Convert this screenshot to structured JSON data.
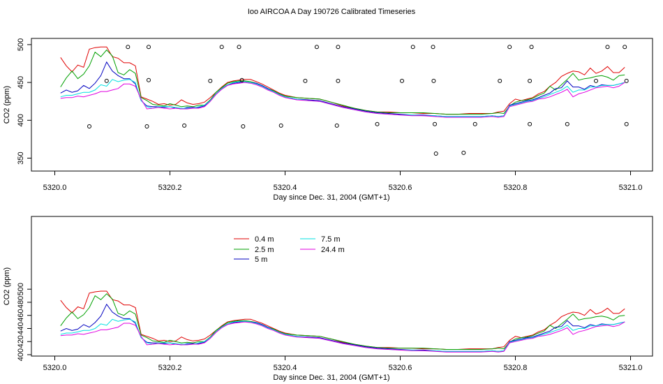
{
  "figure": {
    "title": "Ioo AIRCOA A  Day 190726  Calibrated Timeseries"
  },
  "legend": [
    {
      "label": "0.4 m",
      "color": "#e00000"
    },
    {
      "label": "2.5 m",
      "color": "#00a000"
    },
    {
      "label": "5 m",
      "color": "#0000c0"
    },
    {
      "label": "7.5 m",
      "color": "#00e0e0"
    },
    {
      "label": "24.4 m",
      "color": "#e000e0"
    }
  ],
  "chart_data": [
    {
      "type": "line+scatter",
      "xlabel": "Day since Dec. 31, 2004 (GMT+1)",
      "ylabel": "CO2 (ppm)",
      "xlim": [
        5320.0,
        5321.0
      ],
      "ylim": [
        330,
        510
      ],
      "xticks": [
        "5320.0",
        "5320.2",
        "5320.4",
        "5320.6",
        "5320.8",
        "5321.0"
      ],
      "yticks": [
        "350",
        "400",
        "450",
        "500"
      ],
      "grid": false,
      "calibration_points": [
        [
          5320.06,
          392
        ],
        [
          5320.09,
          452
        ],
        [
          5320.127,
          497
        ],
        [
          5320.16,
          392
        ],
        [
          5320.163,
          453
        ],
        [
          5320.163,
          497
        ],
        [
          5320.225,
          393
        ],
        [
          5320.27,
          452
        ],
        [
          5320.29,
          497
        ],
        [
          5320.32,
          497
        ],
        [
          5320.325,
          453
        ],
        [
          5320.327,
          392
        ],
        [
          5320.393,
          393
        ],
        [
          5320.435,
          452
        ],
        [
          5320.455,
          497
        ],
        [
          5320.49,
          393
        ],
        [
          5320.492,
          452
        ],
        [
          5320.492,
          497
        ],
        [
          5320.56,
          395
        ],
        [
          5320.603,
          452
        ],
        [
          5320.622,
          497
        ],
        [
          5320.657,
          497
        ],
        [
          5320.658,
          452
        ],
        [
          5320.66,
          395
        ],
        [
          5320.662,
          356
        ],
        [
          5320.71,
          357
        ],
        [
          5320.73,
          395
        ],
        [
          5320.773,
          452
        ],
        [
          5320.79,
          497
        ],
        [
          5320.825,
          395
        ],
        [
          5320.825,
          452
        ],
        [
          5320.828,
          497
        ],
        [
          5320.89,
          395
        ],
        [
          5320.94,
          452
        ],
        [
          5320.96,
          497
        ],
        [
          5320.99,
          497
        ],
        [
          5320.993,
          452
        ],
        [
          5320.993,
          395
        ]
      ]
    },
    {
      "type": "line",
      "xlabel": "Day since Dec. 31, 2004 (GMT+1)",
      "ylabel": "CO2 (ppm)",
      "xlim": [
        5320.0,
        5321.0
      ],
      "ylim": [
        400,
        502
      ],
      "xticks": [
        "5320.0",
        "5320.2",
        "5320.4",
        "5320.6",
        "5320.8",
        "5321.0"
      ],
      "yticks": [
        "400",
        "420",
        "440",
        "460",
        "480",
        "500"
      ],
      "grid": false,
      "legend_position": "top-center"
    }
  ],
  "series": [
    {
      "name": "0.4 m",
      "color": "#e00000",
      "x": [
        5320.01,
        5320.02,
        5320.03,
        5320.04,
        5320.05,
        5320.06,
        5320.07,
        5320.08,
        5320.09,
        5320.1,
        5320.11,
        5320.12,
        5320.13,
        5320.14,
        5320.15,
        5320.16,
        5320.17,
        5320.18,
        5320.19,
        5320.2,
        5320.21,
        5320.22,
        5320.23,
        5320.24,
        5320.25,
        5320.26,
        5320.27,
        5320.28,
        5320.29,
        5320.3,
        5320.31,
        5320.32,
        5320.33,
        5320.34,
        5320.35,
        5320.36,
        5320.37,
        5320.38,
        5320.39,
        5320.4,
        5320.42,
        5320.44,
        5320.46,
        5320.48,
        5320.5,
        5320.52,
        5320.54,
        5320.56,
        5320.58,
        5320.6,
        5320.62,
        5320.64,
        5320.66,
        5320.68,
        5320.7,
        5320.72,
        5320.74,
        5320.76,
        5320.77,
        5320.78,
        5320.79,
        5320.8,
        5320.81,
        5320.82,
        5320.83,
        5320.84,
        5320.85,
        5320.86,
        5320.87,
        5320.88,
        5320.89,
        5320.9,
        5320.91,
        5320.92,
        5320.93,
        5320.94,
        5320.95,
        5320.96,
        5320.97,
        5320.98,
        5320.99
      ],
      "y": [
        483,
        472,
        464,
        473,
        470,
        494,
        496,
        497,
        497,
        484,
        482,
        476,
        476,
        472,
        431,
        428,
        425,
        421,
        422,
        420,
        421,
        427,
        423,
        421,
        422,
        424,
        430,
        437,
        444,
        450,
        452,
        453,
        454,
        454,
        451,
        448,
        444,
        440,
        436,
        433,
        430,
        429,
        428,
        424,
        419,
        416,
        413,
        411,
        411,
        410,
        410,
        409,
        409,
        408,
        408,
        409,
        409,
        409,
        411,
        412,
        422,
        428,
        426,
        428,
        430,
        435,
        438,
        445,
        450,
        458,
        462,
        465,
        464,
        460,
        469,
        462,
        465,
        471,
        463,
        463,
        470
      ]
    },
    {
      "name": "2.5 m",
      "color": "#00a000",
      "x": [
        5320.01,
        5320.02,
        5320.03,
        5320.04,
        5320.05,
        5320.06,
        5320.07,
        5320.08,
        5320.09,
        5320.1,
        5320.11,
        5320.12,
        5320.13,
        5320.14,
        5320.15,
        5320.16,
        5320.17,
        5320.18,
        5320.19,
        5320.2,
        5320.21,
        5320.22,
        5320.23,
        5320.24,
        5320.25,
        5320.26,
        5320.27,
        5320.28,
        5320.29,
        5320.3,
        5320.31,
        5320.32,
        5320.33,
        5320.34,
        5320.35,
        5320.36,
        5320.37,
        5320.38,
        5320.39,
        5320.4,
        5320.42,
        5320.44,
        5320.46,
        5320.48,
        5320.5,
        5320.52,
        5320.54,
        5320.56,
        5320.58,
        5320.6,
        5320.62,
        5320.64,
        5320.66,
        5320.68,
        5320.7,
        5320.72,
        5320.74,
        5320.76,
        5320.77,
        5320.78,
        5320.79,
        5320.8,
        5320.81,
        5320.82,
        5320.83,
        5320.84,
        5320.85,
        5320.86,
        5320.87,
        5320.88,
        5320.89,
        5320.9,
        5320.91,
        5320.92,
        5320.93,
        5320.94,
        5320.95,
        5320.96,
        5320.97,
        5320.98,
        5320.99
      ],
      "y": [
        444,
        456,
        465,
        455,
        461,
        472,
        490,
        484,
        493,
        485,
        463,
        460,
        467,
        462,
        430,
        426,
        421,
        420,
        419,
        422,
        420,
        418,
        419,
        418,
        420,
        420,
        427,
        437,
        443,
        449,
        451,
        452,
        452,
        451,
        449,
        446,
        442,
        439,
        435,
        432,
        430,
        429,
        428,
        424,
        420,
        416,
        413,
        411,
        410,
        410,
        410,
        410,
        409,
        408,
        408,
        408,
        408,
        409,
        410,
        409,
        419,
        424,
        426,
        427,
        429,
        433,
        436,
        445,
        440,
        447,
        454,
        462,
        453,
        455,
        456,
        458,
        459,
        457,
        453,
        459,
        460
      ]
    },
    {
      "name": "5 m",
      "color": "#0000c0",
      "x": [
        5320.01,
        5320.02,
        5320.03,
        5320.04,
        5320.05,
        5320.06,
        5320.07,
        5320.08,
        5320.09,
        5320.1,
        5320.11,
        5320.12,
        5320.13,
        5320.14,
        5320.15,
        5320.16,
        5320.17,
        5320.18,
        5320.19,
        5320.2,
        5320.21,
        5320.22,
        5320.23,
        5320.24,
        5320.25,
        5320.26,
        5320.27,
        5320.28,
        5320.29,
        5320.3,
        5320.31,
        5320.32,
        5320.33,
        5320.34,
        5320.35,
        5320.36,
        5320.37,
        5320.38,
        5320.39,
        5320.4,
        5320.42,
        5320.44,
        5320.46,
        5320.48,
        5320.5,
        5320.52,
        5320.54,
        5320.56,
        5320.58,
        5320.6,
        5320.62,
        5320.64,
        5320.66,
        5320.68,
        5320.7,
        5320.72,
        5320.74,
        5320.76,
        5320.77,
        5320.78,
        5320.79,
        5320.8,
        5320.81,
        5320.82,
        5320.83,
        5320.84,
        5320.85,
        5320.86,
        5320.87,
        5320.88,
        5320.89,
        5320.9,
        5320.91,
        5320.92,
        5320.93,
        5320.94,
        5320.95,
        5320.96,
        5320.97,
        5320.98,
        5320.99
      ],
      "y": [
        436,
        440,
        437,
        439,
        446,
        442,
        449,
        459,
        477,
        465,
        459,
        455,
        455,
        448,
        426,
        419,
        418,
        418,
        417,
        418,
        416,
        415,
        417,
        417,
        417,
        419,
        426,
        435,
        442,
        447,
        449,
        450,
        451,
        450,
        449,
        446,
        442,
        438,
        434,
        431,
        428,
        427,
        426,
        422,
        418,
        415,
        412,
        410,
        409,
        408,
        407,
        407,
        406,
        405,
        405,
        405,
        405,
        406,
        405,
        406,
        420,
        422,
        424,
        426,
        427,
        430,
        433,
        436,
        442,
        443,
        452,
        444,
        444,
        441,
        446,
        444,
        447,
        446,
        446,
        448,
        450
      ]
    },
    {
      "name": "7.5 m",
      "color": "#00e0e0",
      "x": [
        5320.01,
        5320.02,
        5320.03,
        5320.04,
        5320.05,
        5320.06,
        5320.07,
        5320.08,
        5320.09,
        5320.1,
        5320.11,
        5320.12,
        5320.13,
        5320.14,
        5320.15,
        5320.16,
        5320.17,
        5320.18,
        5320.19,
        5320.2,
        5320.21,
        5320.22,
        5320.23,
        5320.24,
        5320.25,
        5320.26,
        5320.27,
        5320.28,
        5320.29,
        5320.3,
        5320.31,
        5320.32,
        5320.33,
        5320.34,
        5320.35,
        5320.36,
        5320.37,
        5320.38,
        5320.39,
        5320.4,
        5320.42,
        5320.44,
        5320.46,
        5320.48,
        5320.5,
        5320.52,
        5320.54,
        5320.56,
        5320.58,
        5320.6,
        5320.62,
        5320.64,
        5320.66,
        5320.68,
        5320.7,
        5320.72,
        5320.74,
        5320.76,
        5320.77,
        5320.78,
        5320.79,
        5320.8,
        5320.81,
        5320.82,
        5320.83,
        5320.84,
        5320.85,
        5320.86,
        5320.87,
        5320.88,
        5320.89,
        5320.9,
        5320.91,
        5320.92,
        5320.93,
        5320.94,
        5320.95,
        5320.96,
        5320.97,
        5320.98,
        5320.99
      ],
      "y": [
        431,
        433,
        433,
        435,
        437,
        437,
        440,
        447,
        445,
        454,
        451,
        453,
        454,
        450,
        426,
        418,
        416,
        418,
        418,
        418,
        417,
        416,
        416,
        416,
        418,
        420,
        426,
        435,
        442,
        447,
        450,
        451,
        451,
        450,
        448,
        445,
        441,
        438,
        434,
        431,
        428,
        426,
        425,
        421,
        417,
        414,
        411,
        409,
        408,
        407,
        407,
        406,
        406,
        405,
        405,
        405,
        405,
        406,
        405,
        406,
        419,
        421,
        423,
        425,
        426,
        429,
        431,
        434,
        437,
        440,
        445,
        437,
        440,
        440,
        444,
        444,
        446,
        446,
        446,
        448,
        450
      ]
    },
    {
      "name": "24.4 m",
      "color": "#e000e0",
      "x": [
        5320.01,
        5320.02,
        5320.03,
        5320.04,
        5320.05,
        5320.06,
        5320.07,
        5320.08,
        5320.09,
        5320.1,
        5320.11,
        5320.12,
        5320.13,
        5320.14,
        5320.15,
        5320.16,
        5320.17,
        5320.18,
        5320.19,
        5320.2,
        5320.21,
        5320.22,
        5320.23,
        5320.24,
        5320.25,
        5320.26,
        5320.27,
        5320.28,
        5320.29,
        5320.3,
        5320.31,
        5320.32,
        5320.33,
        5320.34,
        5320.35,
        5320.36,
        5320.37,
        5320.38,
        5320.39,
        5320.4,
        5320.42,
        5320.44,
        5320.46,
        5320.48,
        5320.5,
        5320.52,
        5320.54,
        5320.56,
        5320.58,
        5320.6,
        5320.62,
        5320.64,
        5320.66,
        5320.68,
        5320.7,
        5320.72,
        5320.74,
        5320.76,
        5320.77,
        5320.78,
        5320.79,
        5320.8,
        5320.81,
        5320.82,
        5320.83,
        5320.84,
        5320.85,
        5320.86,
        5320.87,
        5320.88,
        5320.89,
        5320.9,
        5320.91,
        5320.92,
        5320.93,
        5320.94,
        5320.95,
        5320.96,
        5320.97,
        5320.98,
        5320.99
      ],
      "y": [
        429,
        430,
        430,
        432,
        431,
        433,
        435,
        438,
        438,
        440,
        442,
        448,
        448,
        445,
        428,
        415,
        416,
        417,
        416,
        415,
        416,
        415,
        415,
        416,
        416,
        418,
        425,
        434,
        441,
        446,
        448,
        449,
        450,
        449,
        447,
        444,
        440,
        437,
        433,
        430,
        427,
        426,
        425,
        421,
        417,
        414,
        411,
        409,
        408,
        407,
        406,
        406,
        405,
        404,
        404,
        404,
        404,
        405,
        404,
        405,
        418,
        420,
        422,
        424,
        425,
        428,
        429,
        431,
        434,
        437,
        441,
        431,
        435,
        437,
        440,
        443,
        444,
        445,
        443,
        445,
        450
      ]
    }
  ]
}
